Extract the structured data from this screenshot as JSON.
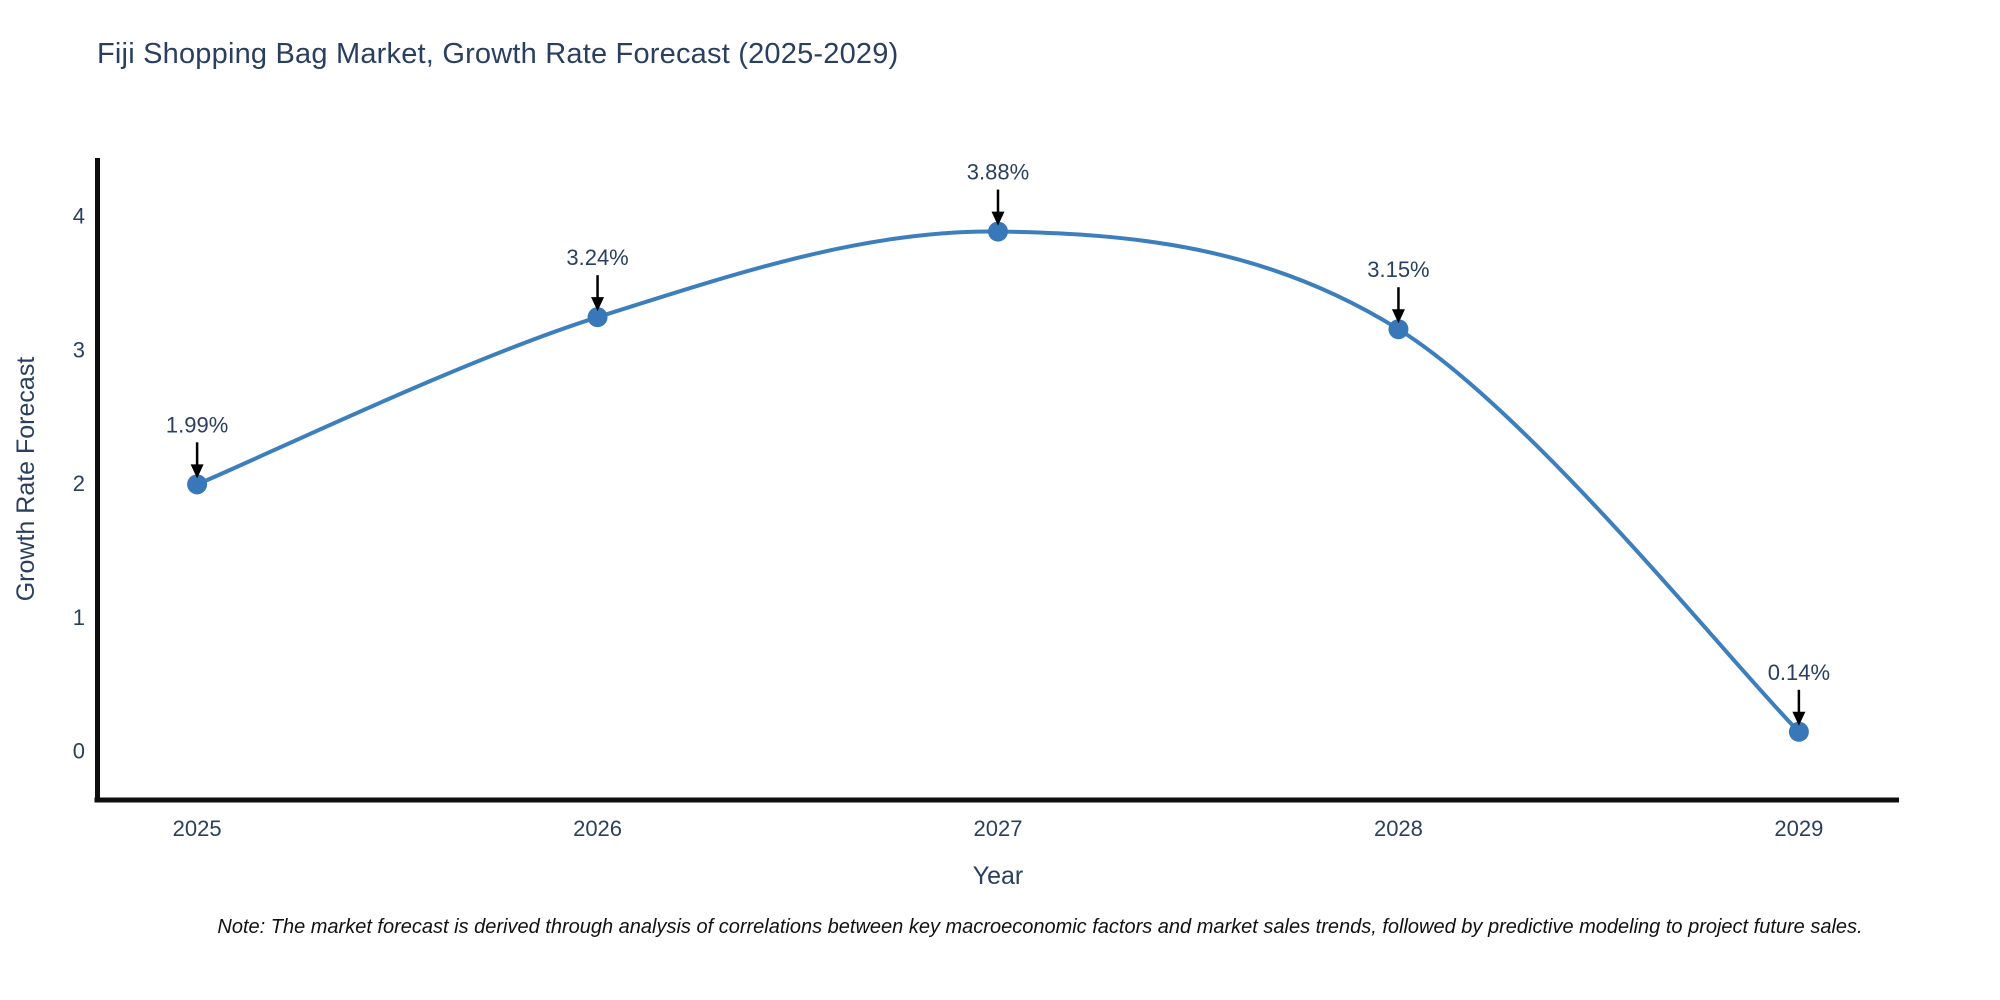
{
  "figure": {
    "background": "#ffffff"
  },
  "chart_data": {
    "type": "line",
    "title": "Fiji Shopping Bag Market, Growth Rate Forecast (2025-2029)",
    "xlabel": "Year",
    "ylabel": "Growth Rate Forecast",
    "x": [
      2025,
      2026,
      2027,
      2028,
      2029
    ],
    "values": [
      1.99,
      3.24,
      3.88,
      3.15,
      0.14
    ],
    "point_labels": [
      "1.99%",
      "3.24%",
      "3.88%",
      "3.15%",
      "0.14%"
    ],
    "x_tick_labels": [
      "2025",
      "2026",
      "2027",
      "2028",
      "2029"
    ],
    "y_ticks": [
      0,
      1,
      2,
      3,
      4
    ],
    "x_range": [
      2024.75,
      2029.25
    ],
    "y_range": [
      -0.37,
      4.43
    ],
    "line_shape": "spline",
    "grid": false,
    "legend": "none",
    "note": "Note: The market forecast is derived through analysis of correlations between key macroeconomic factors and market sales trends, followed by predictive modeling to project future sales.",
    "colors": {
      "line": "#3d7ebd",
      "marker": "#3878b8",
      "axis": "#0d0d0d",
      "text": "#2a3f5f",
      "arrow": "#000000",
      "background": "#ffffff"
    }
  }
}
